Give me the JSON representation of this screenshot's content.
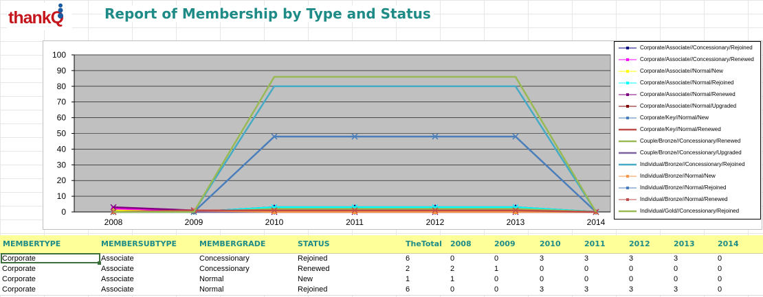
{
  "report": {
    "title": "Report of Membership by Type and Status"
  },
  "logo": {
    "text": "thankQ"
  },
  "chart_data": {
    "type": "line",
    "title": "",
    "xlabel": "",
    "ylabel": "",
    "x": [
      "2008",
      "2009",
      "2010",
      "2011",
      "2012",
      "2013",
      "2014"
    ],
    "ylim": [
      0,
      100
    ],
    "yticks": [
      0,
      10,
      20,
      30,
      40,
      50,
      60,
      70,
      80,
      90,
      100
    ],
    "grid": true,
    "legend_position": "right",
    "series": [
      {
        "name": "Corporate/Associate//Concessionary/Rejoined",
        "color": "#000080",
        "marker": "diamond",
        "values": [
          0,
          0,
          3,
          3,
          3,
          3,
          0
        ]
      },
      {
        "name": "Corporate/Associate//Concessionary/Renewed",
        "color": "#ff00ff",
        "marker": "square",
        "values": [
          2,
          1,
          0,
          0,
          0,
          0,
          0
        ]
      },
      {
        "name": "Corporate/Associate//Normal/New",
        "color": "#ffff00",
        "marker": "triangle",
        "values": [
          1,
          0,
          0,
          0,
          0,
          0,
          0
        ]
      },
      {
        "name": "Corporate/Associate//Normal/Rejoined",
        "color": "#00ffff",
        "marker": "x",
        "values": [
          0,
          0,
          3,
          3,
          3,
          3,
          0
        ]
      },
      {
        "name": "Corporate/Associate//Normal/Renewed",
        "color": "#800080",
        "marker": "star",
        "values": [
          3,
          1,
          0,
          0,
          0,
          0,
          0
        ]
      },
      {
        "name": "Corporate/Associate//Normal/Upgraded",
        "color": "#800000",
        "marker": "circle",
        "values": [
          0,
          0,
          1,
          1,
          1,
          1,
          0
        ]
      },
      {
        "name": "Corporate/Key//Normal/New",
        "color": "#4a7ebb",
        "marker": "plus",
        "values": [
          0,
          0,
          0,
          0,
          0,
          0,
          0
        ]
      },
      {
        "name": "Corporate/Key//Normal/Renewed",
        "color": "#be4b48",
        "marker": "none",
        "values": [
          0,
          1,
          1,
          1,
          1,
          1,
          0
        ]
      },
      {
        "name": "Couple/Bronze//Concessionary/Renewed",
        "color": "#98b954",
        "marker": "none",
        "values": [
          0,
          0,
          2,
          2,
          2,
          2,
          0
        ]
      },
      {
        "name": "Couple/Bronze//Concessionary/Upgraded",
        "color": "#7d60a0",
        "marker": "none",
        "values": [
          0,
          0,
          0,
          0,
          0,
          0,
          0
        ]
      },
      {
        "name": "Individual/Bronze//Concessionary/Rejoined",
        "color": "#46aac5",
        "marker": "none",
        "values": [
          0,
          0,
          80,
          80,
          80,
          80,
          0
        ]
      },
      {
        "name": "Individual/Bronze//Normal/New",
        "color": "#f79646",
        "marker": "triangle",
        "values": [
          0,
          1,
          0,
          0,
          0,
          0,
          0
        ]
      },
      {
        "name": "Individual/Bronze//Normal/Rejoined",
        "color": "#4a7ebb",
        "marker": "x",
        "values": [
          0,
          0,
          48,
          48,
          48,
          48,
          0
        ]
      },
      {
        "name": "Individual/Bronze//Normal/Renewed",
        "color": "#be4b48",
        "marker": "x",
        "values": [
          0,
          1,
          1,
          1,
          1,
          1,
          0
        ]
      },
      {
        "name": "Individual/Gold//Concessionary/Rejoined",
        "color": "#98b954",
        "marker": "none",
        "values": [
          0,
          0,
          86,
          86,
          86,
          86,
          0
        ]
      }
    ]
  },
  "table": {
    "headers": [
      "MEMBERTYPE",
      "MEMBERSUBTYPE",
      "MEMBERGRADE",
      "STATUS",
      "TheTotal",
      "2008",
      "2009",
      "2010",
      "2011",
      "2012",
      "2013",
      "2014"
    ],
    "rows": [
      [
        "Corporate",
        "Associate",
        "Concessionary",
        "Rejoined",
        "6",
        "0",
        "0",
        "3",
        "3",
        "3",
        "3",
        "0"
      ],
      [
        "Corporate",
        "Associate",
        "Concessionary",
        "Renewed",
        "2",
        "2",
        "1",
        "0",
        "0",
        "0",
        "0",
        "0"
      ],
      [
        "Corporate",
        "Associate",
        "Normal",
        "New",
        "1",
        "1",
        "0",
        "0",
        "0",
        "0",
        "0",
        "0"
      ],
      [
        "Corporate",
        "Associate",
        "Normal",
        "Rejoined",
        "6",
        "0",
        "0",
        "3",
        "3",
        "3",
        "3",
        "0"
      ]
    ]
  }
}
